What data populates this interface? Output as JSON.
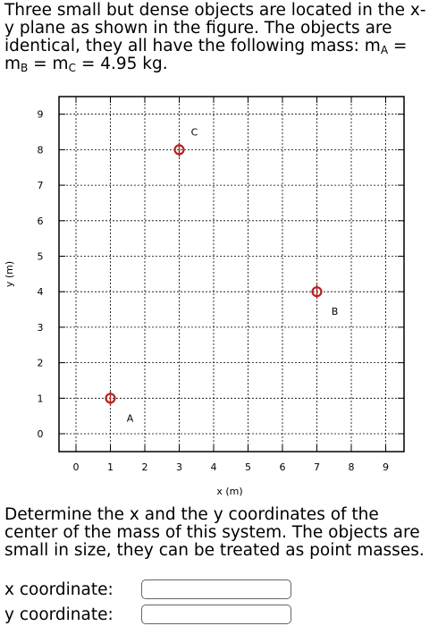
{
  "problem": {
    "intro": "Three small but dense objects are located in the x-y plane as shown in the figure. The objects are identical, they all have the following mass: m",
    "sub_a": "A",
    "eq1": " = m",
    "sub_b": "B",
    "eq2": " = m",
    "sub_c": "C",
    "eq3": " = 4.95 kg."
  },
  "chart_data": {
    "type": "scatter",
    "xlabel": "x (m)",
    "ylabel": "y (m)",
    "xlim": [
      0,
      9
    ],
    "ylim": [
      0,
      9
    ],
    "xticks": [
      0,
      1,
      2,
      3,
      4,
      5,
      6,
      7,
      8,
      9
    ],
    "yticks": [
      0,
      1,
      2,
      3,
      4,
      5,
      6,
      7,
      8,
      9
    ],
    "grid": true,
    "marker_color": "#b22222",
    "points": [
      {
        "label": "A",
        "x": 1,
        "y": 1
      },
      {
        "label": "B",
        "x": 7,
        "y": 4
      },
      {
        "label": "C",
        "x": 3,
        "y": 8
      }
    ]
  },
  "question": {
    "text": "Determine the x and the y coordinates of the center of the mass of this system. The objects are small in size, they can be treated as point masses."
  },
  "answers": {
    "x_label": "x coordinate:",
    "x_value": "",
    "y_label": "y coordinate:",
    "y_value": ""
  }
}
